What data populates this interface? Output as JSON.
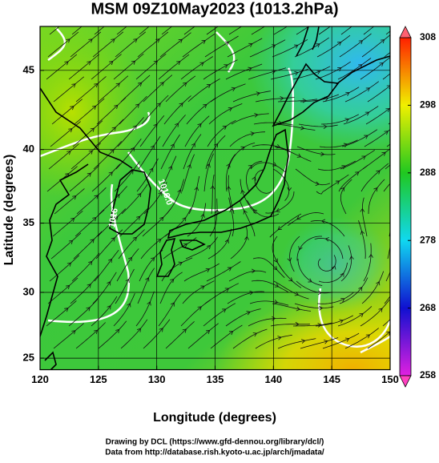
{
  "chart_data": {
    "type": "map",
    "title": "MSM 09Z10May2023 (1013.2hPa)",
    "xlabel": "Longitude (degrees)",
    "ylabel": "Latitude  (degrees)",
    "projection": "mercator",
    "xlim": [
      120,
      150
    ],
    "ylim": [
      24.1,
      47.6
    ],
    "xticks": [
      120,
      125,
      130,
      135,
      140,
      145,
      150
    ],
    "yticks": [
      25,
      30,
      35,
      40,
      45
    ],
    "grid": true,
    "colorbar": {
      "lim": [
        258,
        308
      ],
      "ticks": [
        258,
        268,
        278,
        288,
        298,
        308
      ],
      "colors": [
        "#e020e0",
        "#1010d0",
        "#10d8f0",
        "#20c820",
        "#f0f000",
        "#ff2000"
      ]
    },
    "annotations": [
      "1016.0",
      "1016"
    ],
    "footer": [
      "Drawing by DCL (https://www.gfd-dennou.org/library/dcl/)",
      "Data from http://database.rish.kyoto-u.ac.jp/arch/jmadata/"
    ]
  }
}
